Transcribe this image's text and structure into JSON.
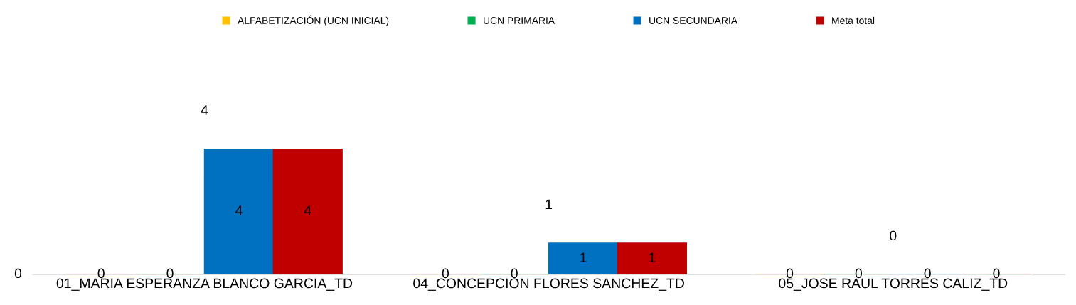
{
  "chart_data": {
    "type": "bar",
    "categories": [
      "01_MARIA ESPERANZA BLANCO GARCIA_TD",
      "04_CONCEPCION FLORES SANCHEZ_TD",
      "05_JOSE RAUL TORRES CALIZ_TD"
    ],
    "series": [
      {
        "name": "ALFABETIZACIÓN (UCN INICIAL)",
        "color": "#ffc000",
        "values": [
          0,
          0,
          0
        ]
      },
      {
        "name": "UCN PRIMARIA",
        "color": "#00b050",
        "values": [
          0,
          0,
          0
        ]
      },
      {
        "name": "UCN SECUNDARIA",
        "color": "#0070c0",
        "values": [
          4,
          1,
          0
        ]
      },
      {
        "name": "Meta total",
        "color": "#c00000",
        "values": [
          4,
          1,
          0
        ]
      }
    ],
    "grid": false,
    "legend": "top",
    "data_labels": true,
    "annotations": [
      "4",
      "1",
      "0",
      "0"
    ]
  }
}
